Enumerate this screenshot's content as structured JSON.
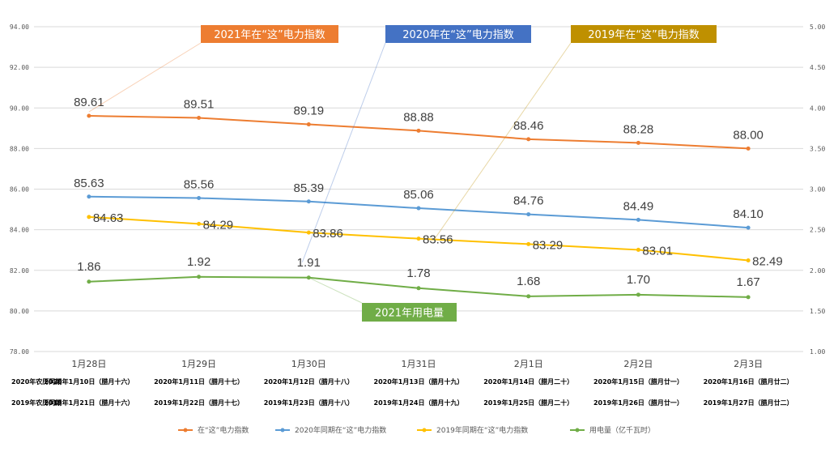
{
  "chart_data": {
    "type": "line",
    "categories": [
      "1月28日",
      "1月29日",
      "1月30日",
      "1月31日",
      "2月1日",
      "2月2日",
      "2月3日"
    ],
    "lunar_rows": [
      {
        "label": "2020年农历同期",
        "values": [
          "2020年1月10日（腊月十六）",
          "2020年1月11日（腊月十七）",
          "2020年1月12日（腊月十八）",
          "2020年1月13日（腊月十九）",
          "2020年1月14日（腊月二十）",
          "2020年1月15日（腊月廿一）",
          "2020年1月16日（腊月廿二）"
        ]
      },
      {
        "label": "2019年农历同期",
        "values": [
          "2019年1月21日（腊月十六）",
          "2019年1月22日（腊月十七）",
          "2019年1月23日（腊月十八）",
          "2019年1月24日（腊月十九）",
          "2019年1月25日（腊月二十）",
          "2019年1月26日（腊月廿一）",
          "2019年1月27日（腊月廿二）"
        ]
      }
    ],
    "y_left": {
      "min": 78,
      "max": 94,
      "step": 2,
      "ticks": [
        "78.00",
        "80.00",
        "82.00",
        "84.00",
        "86.00",
        "88.00",
        "90.00",
        "92.00",
        "94.00"
      ]
    },
    "y_right": {
      "min": 1.0,
      "max": 5.0,
      "step": 0.5,
      "ticks": [
        "1.00",
        "1.50",
        "2.00",
        "2.50",
        "3.00",
        "3.50",
        "4.00",
        "4.50",
        "5.00"
      ]
    },
    "grid": true,
    "legend_position": "bottom",
    "series": [
      {
        "name": "在“这”电力指数",
        "axis": "left",
        "color": "#ED7D31",
        "values": [
          89.61,
          89.51,
          89.19,
          88.88,
          88.46,
          88.28,
          88.0
        ],
        "labels": [
          "89.61",
          "89.51",
          "89.19",
          "88.88",
          "88.46",
          "88.28",
          "88.00"
        ]
      },
      {
        "name": "2020年同期在“这”电力指数",
        "axis": "left",
        "color": "#5B9BD5",
        "values": [
          85.63,
          85.56,
          85.39,
          85.06,
          84.76,
          84.49,
          84.1
        ],
        "labels": [
          "85.63",
          "85.56",
          "85.39",
          "85.06",
          "84.76",
          "84.49",
          "84.10"
        ]
      },
      {
        "name": "2019年同期在“这”电力指数",
        "axis": "left",
        "color": "#FFC000",
        "values": [
          84.63,
          84.29,
          83.86,
          83.56,
          83.29,
          83.01,
          82.49
        ],
        "labels": [
          "84.63",
          "84.29",
          "83.86",
          "83.56",
          "83.29",
          "83.01",
          "82.49"
        ]
      },
      {
        "name": "用电量（亿千瓦时）",
        "axis": "right",
        "color": "#70AD47",
        "values": [
          1.86,
          1.92,
          1.91,
          1.78,
          1.68,
          1.7,
          1.67
        ],
        "labels": [
          "1.86",
          "1.92",
          "1.91",
          "1.78",
          "1.68",
          "1.70",
          "1.67"
        ]
      }
    ],
    "callouts": [
      {
        "text": "2021年在“这”电力指数",
        "color": "#ED7D31",
        "series": 0
      },
      {
        "text": "2020年在“这”电力指数",
        "color": "#4472C4",
        "series": 1
      },
      {
        "text": "2019年在“这”电力指数",
        "color": "#BF9000",
        "series": 2
      },
      {
        "text": "2021年用电量",
        "color": "#70AD47",
        "series": 3
      }
    ]
  }
}
